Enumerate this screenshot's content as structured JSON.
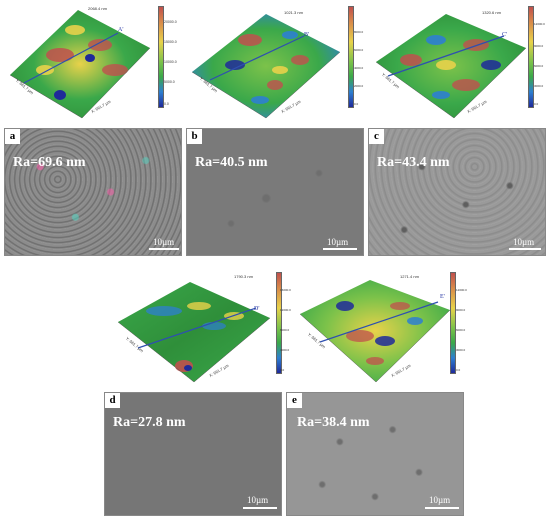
{
  "afm_top": [
    {
      "max_label": "2068.4 nm",
      "ticks": [
        "20000.0",
        "15000.0",
        "10000.0",
        "5000.0",
        "0.0"
      ],
      "profile": "A'",
      "x_axis": "X: 661.7 µm",
      "y_axis": "Y: 661.7 µm"
    },
    {
      "max_label": "1021.3 nm",
      "ticks": [
        "8000.0",
        "6000.0",
        "4000.0",
        "2000.0",
        "0.0"
      ],
      "profile": "B'",
      "x_axis": "X: 661.7 µm",
      "y_axis": "Y: 661.7 µm"
    },
    {
      "max_label": "1320.6 nm",
      "ticks": [
        "12000.0",
        "9000.0",
        "6000.0",
        "3000.0",
        "0.0"
      ],
      "profile": "C'",
      "x_axis": "X: 661.7 µm",
      "y_axis": "Y: 661.7 µm"
    }
  ],
  "afm_bottom": [
    {
      "max_label": "1790.3 nm",
      "ticks": [
        "16000.0",
        "12000.0",
        "8000.0",
        "4000.0",
        "0.0"
      ],
      "profile": "D'",
      "x_axis": "X: 661.7 µm",
      "y_axis": "Y: 661.7 µm"
    },
    {
      "max_label": "1271.4 nm",
      "ticks": [
        "12000.0",
        "9000.0",
        "6000.0",
        "3000.0",
        "0.0"
      ],
      "profile": "E'",
      "x_axis": "X: 661.7 µm",
      "y_axis": "Y: 661.7 µm"
    }
  ],
  "sem_panels": [
    {
      "letter": "a",
      "ra": "Ra=69.6 nm",
      "scale": "10µm"
    },
    {
      "letter": "b",
      "ra": "Ra=40.5 nm",
      "scale": "10µm"
    },
    {
      "letter": "c",
      "ra": "Ra=43.4 nm",
      "scale": "10µm"
    },
    {
      "letter": "d",
      "ra": "Ra=27.8 nm",
      "scale": "10µm"
    },
    {
      "letter": "e",
      "ra": "Ra=38.4 nm",
      "scale": "10µm"
    }
  ],
  "colors": {
    "surface_green": "#3aa84a",
    "surface_red": "#c0504d",
    "surface_yellow": "#e8d24a",
    "surface_blue": "#1f2a9a",
    "profile_line": "#2e4fb0",
    "sem_gray": "#7d7d7d"
  }
}
